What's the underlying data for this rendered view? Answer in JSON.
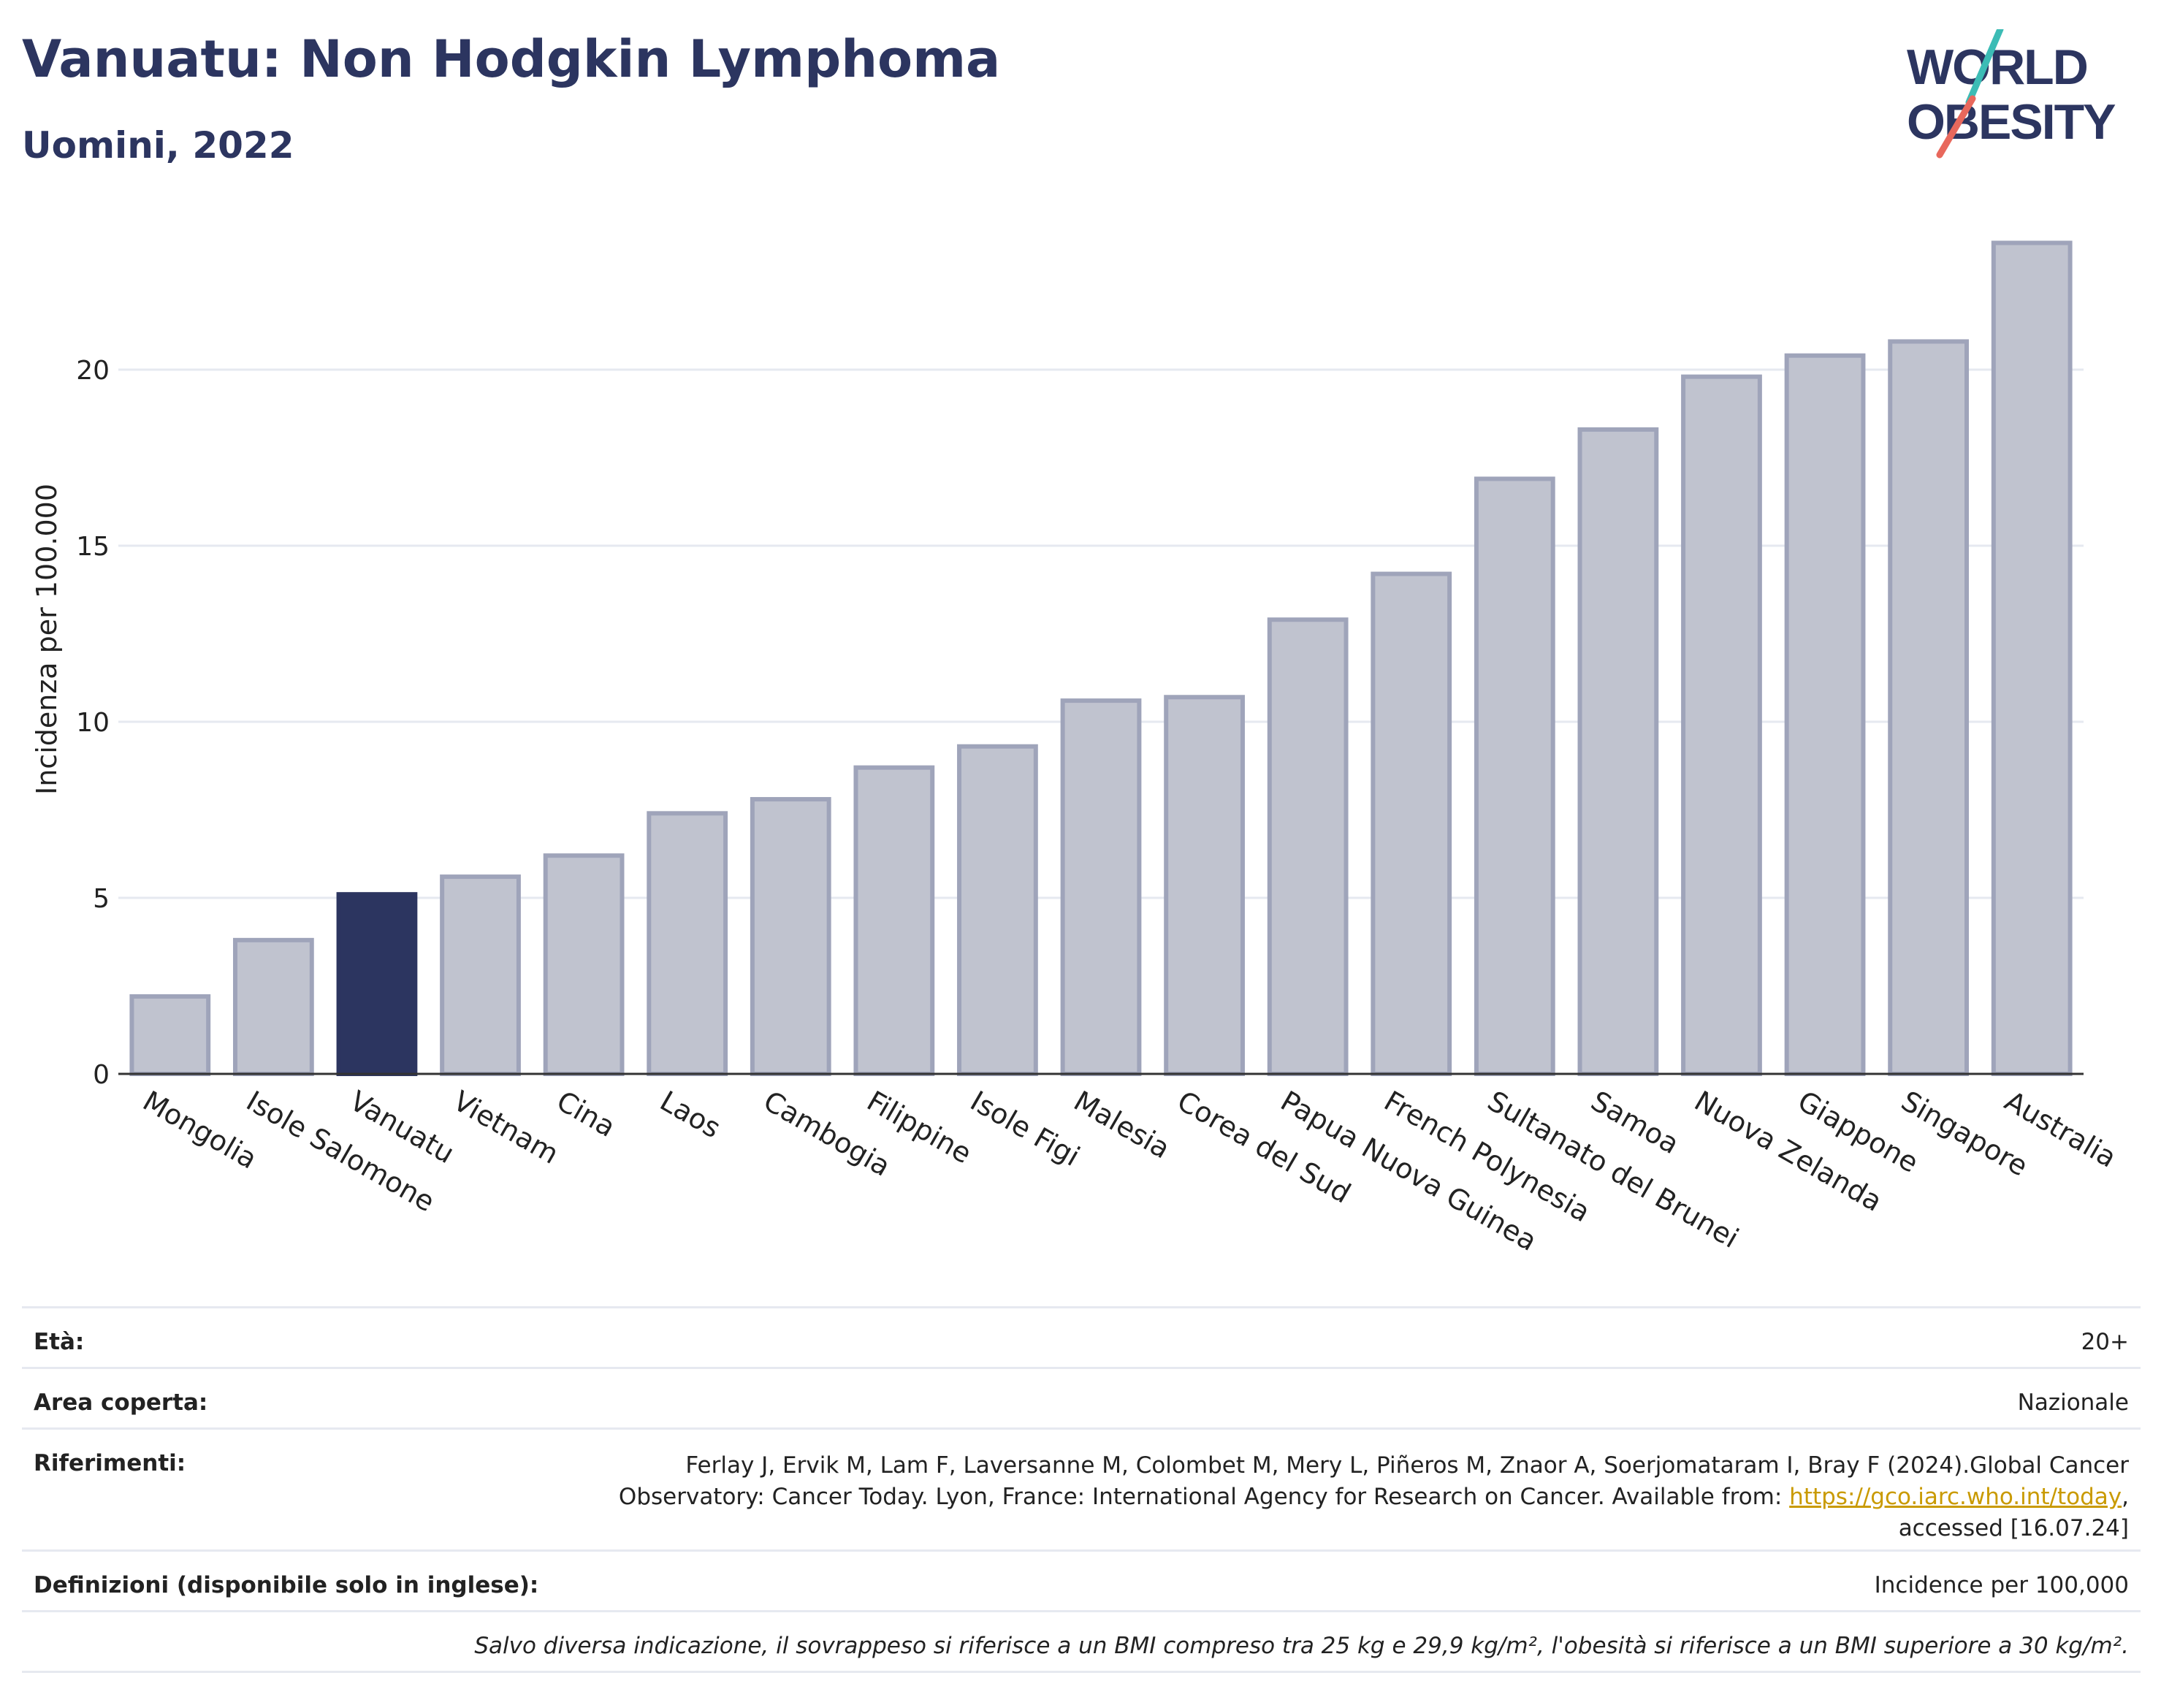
{
  "header": {
    "title": "Vanuatu: Non Hodgkin Lymphoma",
    "subtitle": "Uomini, 2022"
  },
  "logo": {
    "line1": "WORLD",
    "line2": "OBESITY"
  },
  "chart_data": {
    "type": "bar",
    "categories": [
      "Mongolia",
      "Isole Salomone",
      "Vanuatu",
      "Vietnam",
      "Cina",
      "Laos",
      "Cambogia",
      "Filippine",
      "Isole Figi",
      "Malesia",
      "Corea del Sud",
      "Papua Nuova Guinea",
      "French Polynesia",
      "Sultanato del Brunei",
      "Samoa",
      "Nuova Zelanda",
      "Giappone",
      "Singapore",
      "Australia"
    ],
    "values": [
      2.2,
      3.8,
      5.1,
      5.6,
      6.2,
      7.4,
      7.8,
      8.7,
      9.3,
      10.6,
      10.7,
      12.9,
      14.2,
      16.9,
      18.3,
      19.8,
      20.4,
      20.8,
      23.6
    ],
    "highlight": "Vanuatu",
    "ylabel": "Incidenza per 100.000",
    "xlabel": "",
    "ylim": [
      0,
      25
    ],
    "yticks": [
      0,
      5,
      10,
      15,
      20
    ],
    "grid": true,
    "colors": {
      "bar": "#c0c3cf",
      "bar_border": "#9fa4ba",
      "highlight": "#2c3560"
    }
  },
  "info": {
    "eta_label": "Età:",
    "eta_value": "20+",
    "area_label": "Area coperta:",
    "area_value": "Nazionale",
    "ref_label": "Riferimenti:",
    "ref_text_1": "Ferlay J, Ervik M, Lam F, Laversanne M, Colombet M, Mery L, Piñeros M, Znaor A, Soerjomataram I, Bray F (2024).Global Cancer Observatory: Cancer Today. Lyon, France: International Agency for Research on Cancer. Available from: ",
    "ref_link": "https://gco.iarc.who.int/today",
    "ref_text_2": ", accessed [16.07.24]",
    "def_label": "Definizioni (disponibile solo in inglese):",
    "def_value": "Incidence per 100,000",
    "note": "Salvo diversa indicazione, il sovrappeso si riferisce a un BMI compreso tra 25 kg e 29,9 kg/m², l'obesità si riferisce a un BMI superiore a 30 kg/m²."
  }
}
